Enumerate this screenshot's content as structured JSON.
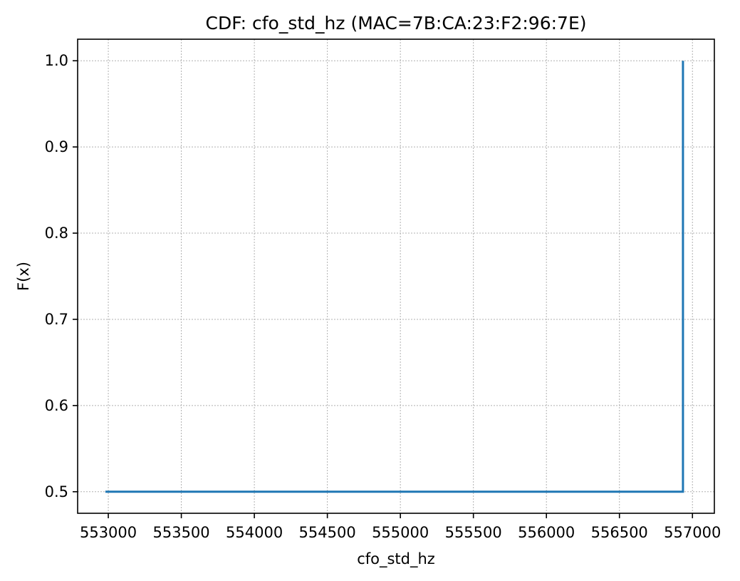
{
  "chart_data": {
    "type": "line",
    "title": "CDF: cfo_std_hz (MAC=7B:CA:23:F2:96:7E)",
    "xlabel": "cfo_std_hz",
    "ylabel": "F(x)",
    "xlim": [
      552790,
      557150
    ],
    "ylim": [
      0.475,
      1.025
    ],
    "x_ticks": [
      553000,
      553500,
      554000,
      554500,
      555000,
      555500,
      556000,
      556500,
      557000
    ],
    "y_ticks": [
      0.5,
      0.6,
      0.7,
      0.8,
      0.9,
      1.0
    ],
    "x_tick_labels": [
      "553000",
      "553500",
      "554000",
      "554500",
      "555000",
      "555500",
      "556000",
      "556500",
      "557000"
    ],
    "y_tick_labels": [
      "0.5",
      "0.6",
      "0.7",
      "0.8",
      "0.9",
      "1.0"
    ],
    "grid": true,
    "series": [
      {
        "color": "#1f77b4",
        "x": [
          552980,
          556935,
          556935
        ],
        "y": [
          0.5,
          0.5,
          1.0
        ]
      }
    ]
  }
}
